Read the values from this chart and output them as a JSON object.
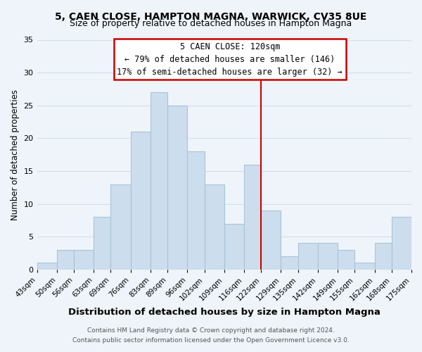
{
  "title": "5, CAEN CLOSE, HAMPTON MAGNA, WARWICK, CV35 8UE",
  "subtitle": "Size of property relative to detached houses in Hampton Magna",
  "xlabel": "Distribution of detached houses by size in Hampton Magna",
  "ylabel": "Number of detached properties",
  "footer_line1": "Contains HM Land Registry data © Crown copyright and database right 2024.",
  "footer_line2": "Contains public sector information licensed under the Open Government Licence v3.0.",
  "bins": [
    43,
    50,
    56,
    63,
    69,
    76,
    83,
    89,
    96,
    102,
    109,
    116,
    122,
    129,
    135,
    142,
    149,
    155,
    162,
    168,
    175
  ],
  "counts": [
    1,
    3,
    3,
    8,
    13,
    21,
    27,
    25,
    18,
    13,
    7,
    16,
    9,
    2,
    4,
    4,
    3,
    1,
    4,
    8
  ],
  "bar_color": "#ccdded",
  "bar_edge_color": "#a8c4d8",
  "bg_color": "#eef4f9",
  "grid_color": "#d0e0ec",
  "reference_line_x": 122,
  "reference_line_color": "#cc0000",
  "annotation_title": "5 CAEN CLOSE: 120sqm",
  "annotation_line1": "← 79% of detached houses are smaller (146)",
  "annotation_line2": "17% of semi-detached houses are larger (32) →",
  "annotation_box_facecolor": "#ffffff",
  "annotation_box_edgecolor": "#cc0000",
  "ylim": [
    0,
    35
  ],
  "yticks": [
    0,
    5,
    10,
    15,
    20,
    25,
    30,
    35
  ],
  "tick_labels": [
    "43sqm",
    "50sqm",
    "56sqm",
    "63sqm",
    "69sqm",
    "76sqm",
    "83sqm",
    "89sqm",
    "96sqm",
    "102sqm",
    "109sqm",
    "116sqm",
    "122sqm",
    "129sqm",
    "135sqm",
    "142sqm",
    "149sqm",
    "155sqm",
    "162sqm",
    "168sqm",
    "175sqm"
  ]
}
